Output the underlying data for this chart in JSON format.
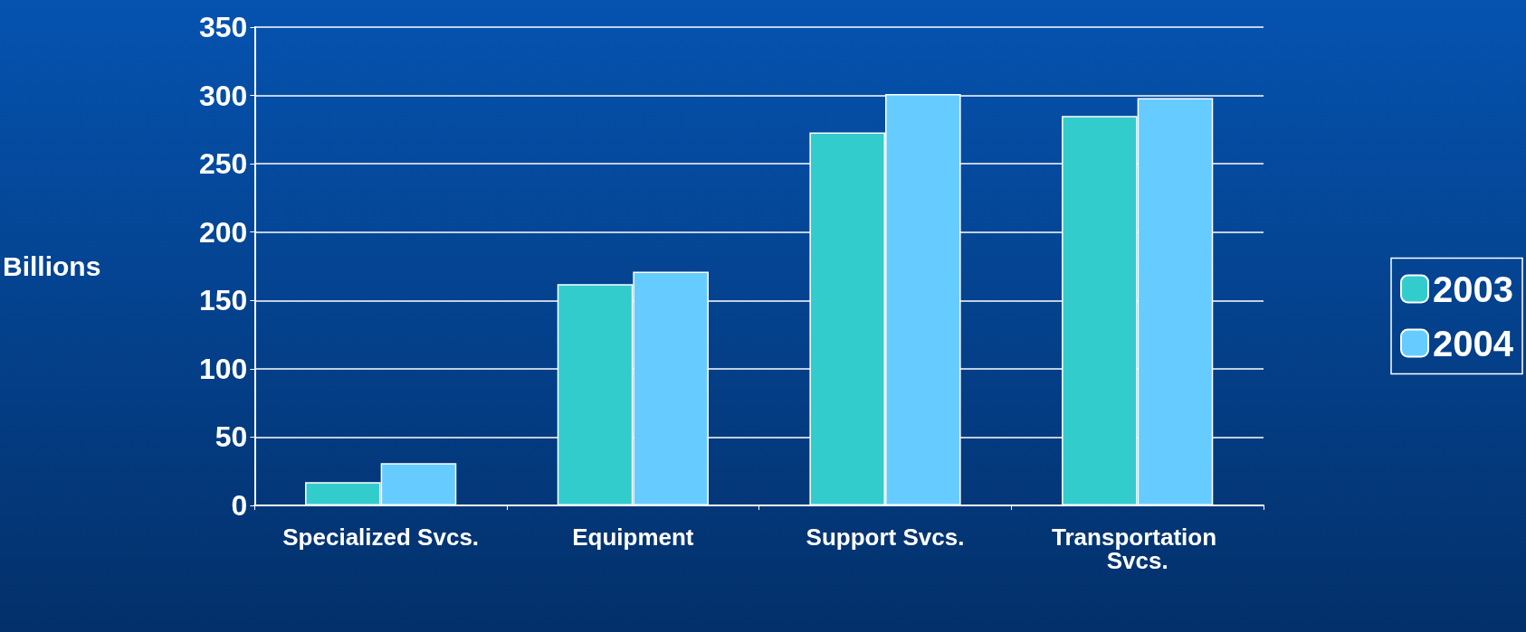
{
  "chart_data": {
    "type": "bar",
    "ylabel": "Billions",
    "categories": [
      "Specialized Svcs.",
      "Equipment",
      "Support Svcs.",
      "Transportation Svcs."
    ],
    "series": [
      {
        "name": "2003",
        "color": "#33cccc",
        "values": [
          17,
          162,
          273,
          285
        ]
      },
      {
        "name": "2004",
        "color": "#66ccff",
        "values": [
          31,
          171,
          301,
          298
        ]
      }
    ],
    "ylim": [
      0,
      350
    ],
    "yticks": [
      0,
      50,
      100,
      150,
      200,
      250,
      300,
      350
    ],
    "grid": "y",
    "legend": "right"
  }
}
